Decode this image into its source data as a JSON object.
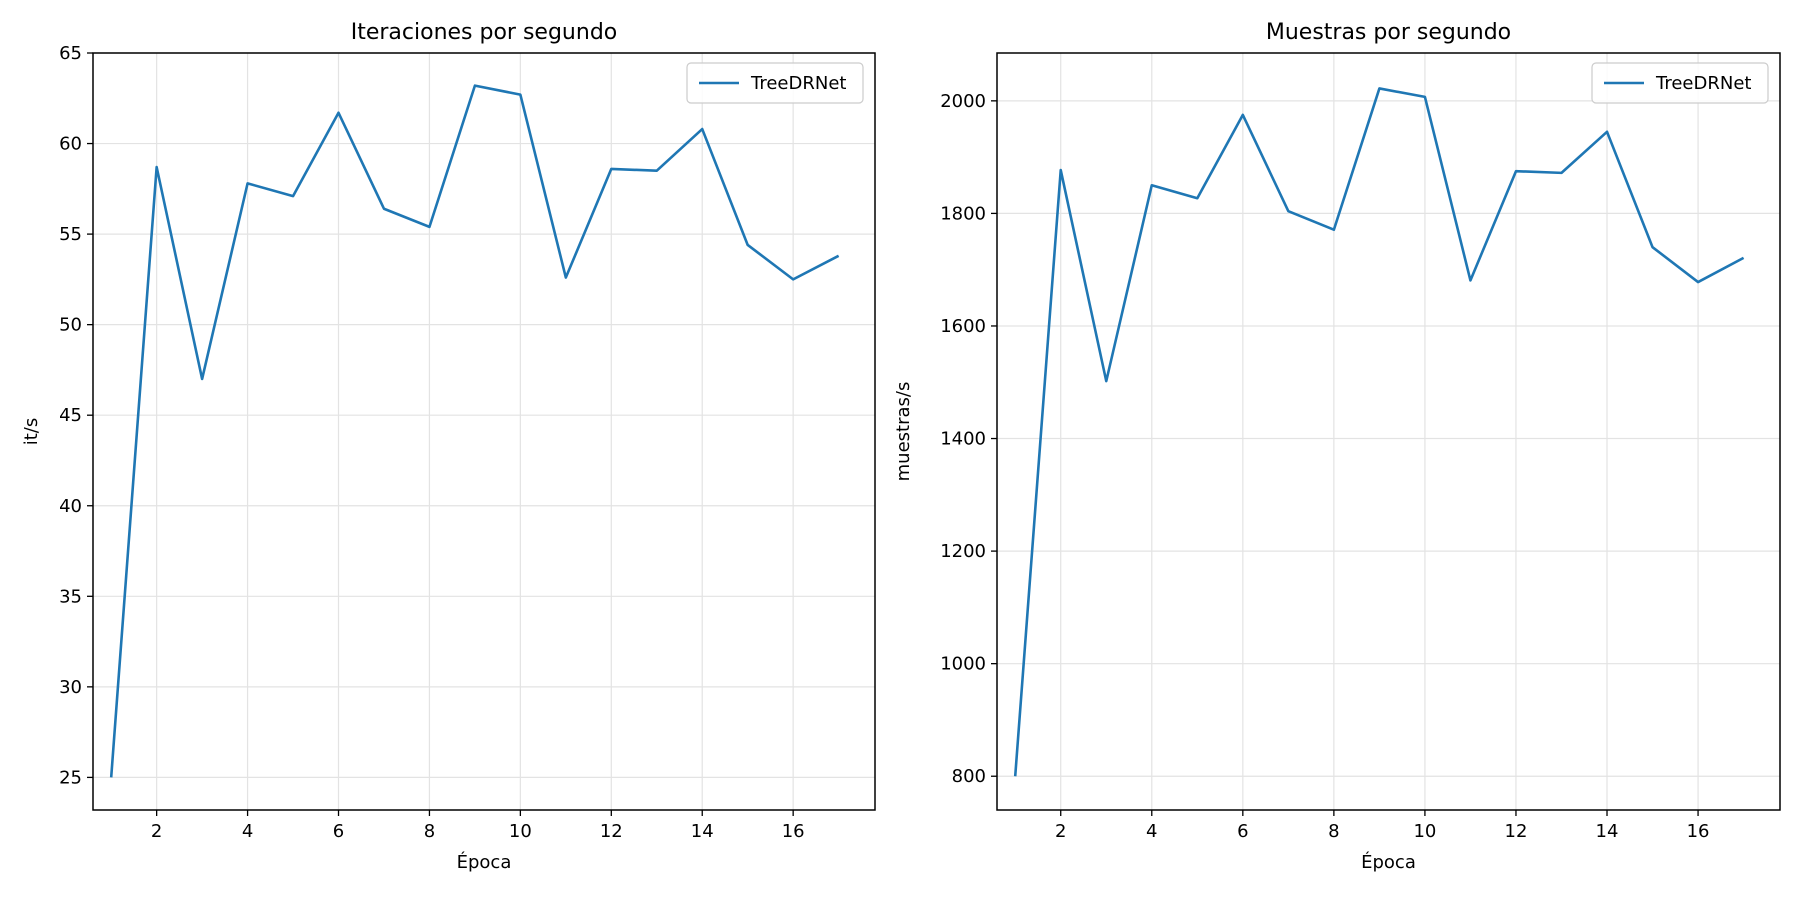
{
  "chart_data": [
    {
      "type": "line",
      "title": "Iteraciones por segundo",
      "xlabel": "Época",
      "ylabel": "it/s",
      "xlim": [
        0.6,
        17.8
      ],
      "ylim": [
        23.2,
        65.0
      ],
      "xticks": [
        2,
        4,
        6,
        8,
        10,
        12,
        14,
        16
      ],
      "yticks": [
        25,
        30,
        35,
        40,
        45,
        50,
        55,
        60,
        65
      ],
      "grid": true,
      "legend_position": "top-right",
      "series": [
        {
          "name": "TreeDRNet",
          "color": "#1f77b4",
          "x": [
            1,
            2,
            3,
            4,
            5,
            6,
            7,
            8,
            9,
            10,
            11,
            12,
            13,
            14,
            15,
            16,
            17
          ],
          "y": [
            25.0,
            58.7,
            47.0,
            57.8,
            57.1,
            61.7,
            56.4,
            55.4,
            63.2,
            62.7,
            52.6,
            58.6,
            58.5,
            60.8,
            54.4,
            52.5,
            53.8
          ]
        }
      ]
    },
    {
      "type": "line",
      "title": "Muestras por segundo",
      "xlabel": "Época",
      "ylabel": "muestras/s",
      "xlim": [
        0.6,
        17.8
      ],
      "ylim": [
        740,
        2085
      ],
      "xticks": [
        2,
        4,
        6,
        8,
        10,
        12,
        14,
        16
      ],
      "yticks": [
        800,
        1000,
        1200,
        1400,
        1600,
        1800,
        2000
      ],
      "grid": true,
      "legend_position": "top-right",
      "series": [
        {
          "name": "TreeDRNet",
          "color": "#1f77b4",
          "x": [
            1,
            2,
            3,
            4,
            5,
            6,
            7,
            8,
            9,
            10,
            11,
            12,
            13,
            14,
            15,
            16,
            17
          ],
          "y": [
            800,
            1877,
            1502,
            1850,
            1827,
            1975,
            1804,
            1771,
            2022,
            2007,
            1681,
            1875,
            1872,
            1945,
            1740,
            1678,
            1721
          ]
        }
      ]
    }
  ]
}
